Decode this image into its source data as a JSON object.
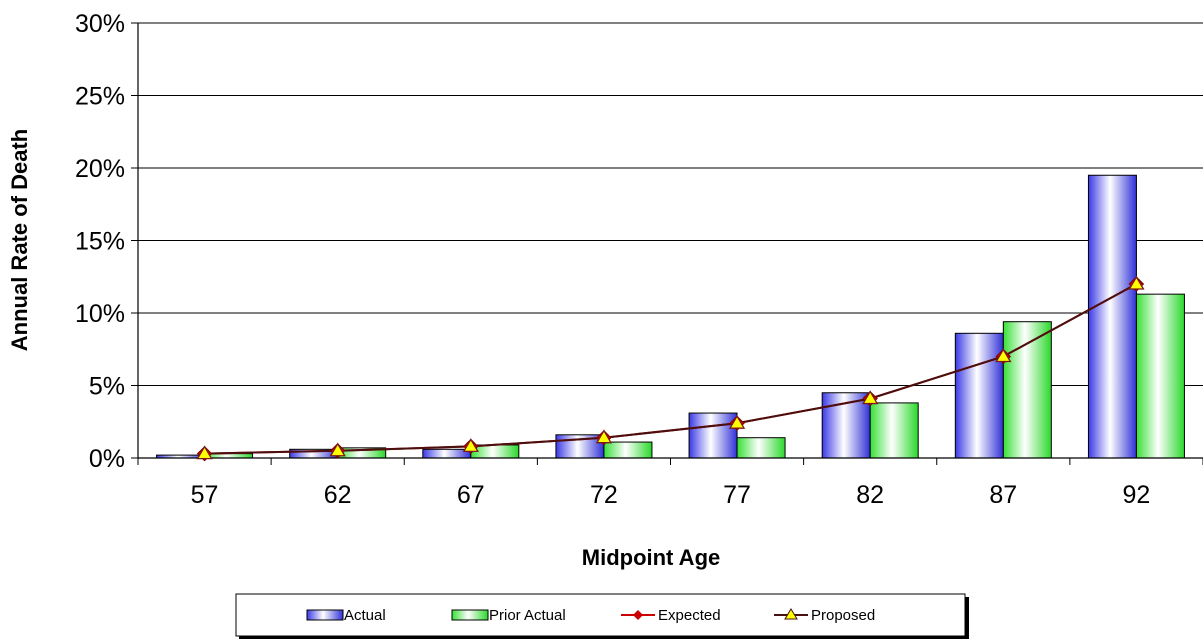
{
  "chart_data": {
    "type": "bar",
    "title": "",
    "xlabel": "Midpoint Age",
    "ylabel": "Annual Rate of Death",
    "ylim": [
      0,
      30
    ],
    "yticks": [
      0,
      5,
      10,
      15,
      20,
      25,
      30
    ],
    "ytick_format": "%",
    "categories": [
      "57",
      "62",
      "67",
      "72",
      "77",
      "82",
      "87",
      "92"
    ],
    "grid": "horizontal",
    "legend_position": "bottom",
    "series": [
      {
        "name": "Actual",
        "kind": "bar",
        "color": "#5b5bf0",
        "values": [
          0.2,
          0.6,
          0.6,
          1.6,
          3.1,
          4.5,
          8.6,
          19.5
        ]
      },
      {
        "name": "Prior Actual",
        "kind": "bar",
        "color": "#5cf05c",
        "values": [
          0.3,
          0.7,
          0.9,
          1.1,
          1.4,
          3.8,
          9.4,
          11.3
        ]
      },
      {
        "name": "Expected",
        "kind": "line",
        "marker": "diamond",
        "color": "#cc0000",
        "values": [
          0.3,
          0.5,
          0.8,
          1.4,
          2.4,
          4.1,
          7.0,
          12.0
        ]
      },
      {
        "name": "Proposed",
        "kind": "line",
        "marker": "triangle",
        "color": "#ffff00",
        "line_color": "#4a0f0f",
        "values": [
          0.3,
          0.5,
          0.8,
          1.4,
          2.4,
          4.1,
          7.0,
          12.0
        ]
      }
    ]
  }
}
